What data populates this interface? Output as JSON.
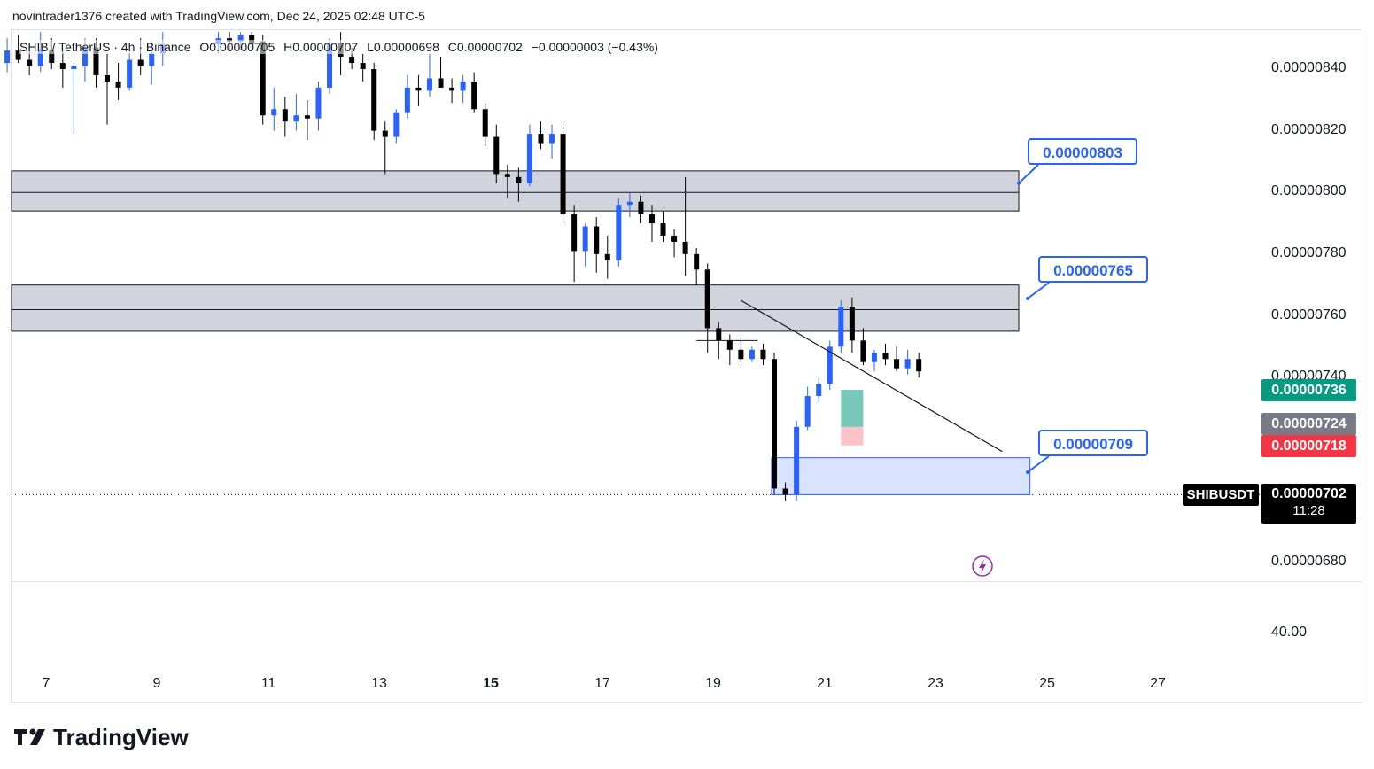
{
  "header": {
    "attribution": "novintrader1376 created with TradingView.com, Dec 24, 2025 02:48 UTC-5"
  },
  "legend": {
    "symbol": "SHIB / TetherUS · 4h · Binance",
    "open": "O0.00000705",
    "high": "H0.00000707",
    "low": "L0.00000698",
    "close": "C0.00000702",
    "change": "−0.00000003 (−0.43%)"
  },
  "price_axis": {
    "ticks": [
      "0.00000840",
      "0.00000820",
      "0.00000800",
      "0.00000780",
      "0.00000760",
      "0.00000740",
      "0.00000680"
    ],
    "indicator_tick": "40.00",
    "label_green": "0.00000736",
    "label_gray": "0.00000724",
    "label_red": "0.00000718",
    "last_price": "0.00000702",
    "countdown": "11:28",
    "symbol_tag": "SHIBUSDT",
    "colors": {
      "green": "#089981",
      "gray": "#787b86",
      "red": "#f23645",
      "black": "#000000"
    }
  },
  "time_axis": {
    "ticks": [
      "7",
      "9",
      "11",
      "13",
      "15",
      "17",
      "19",
      "21",
      "23",
      "25",
      "27"
    ],
    "bold": [
      "15"
    ]
  },
  "callouts": [
    "0.00000803",
    "0.00000765",
    "0.00000709"
  ],
  "footer": {
    "brand": "TradingView"
  },
  "chart_data": {
    "type": "candlestick",
    "symbol": "SHIBUSDT",
    "interval": "4h",
    "exchange": "Binance",
    "ylim": [
      6.7e-06,
      8.5e-06
    ],
    "colors": {
      "up": "#2962ff",
      "down": "#000000",
      "zone": "#d1d4dc",
      "demand_zone": "#cfdcff",
      "accent": "#2962ff"
    },
    "zones": [
      {
        "low": 7.94e-06,
        "high": 8.07e-06,
        "mid": 8e-06
      },
      {
        "low": 7.55e-06,
        "high": 7.7e-06,
        "mid": 7.62e-06
      },
      {
        "low": 7.02e-06,
        "high": 7.14e-06
      }
    ],
    "trendline": [
      {
        "day": 19.5,
        "price": 7.65e-06
      },
      {
        "day": 24.2,
        "price": 7.16e-06
      }
    ],
    "horizontal_segment": {
      "from_day": 18.7,
      "to_day": 19.8,
      "price": 7.52e-06
    },
    "position_tool": {
      "entry": 7.24e-06,
      "target": 7.36e-06,
      "stop": 7.18e-06,
      "from_day": 21.3,
      "to_day": 21.7
    },
    "callout_levels": [
      8.03e-06,
      7.65e-06,
      7.09e-06
    ],
    "candles_ohlc": [
      [
        6.1,
        8.4e-06,
        8.45e-06,
        8.37e-06,
        8.42e-06
      ],
      [
        6.3,
        8.42e-06,
        8.5e-06,
        8.39e-06,
        8.46e-06
      ],
      [
        6.5,
        8.46e-06,
        8.51e-06,
        8.42e-06,
        8.43e-06
      ],
      [
        6.7,
        8.43e-06,
        8.47e-06,
        8.38e-06,
        8.41e-06
      ],
      [
        6.9,
        8.41e-06,
        8.52e-06,
        8.39e-06,
        8.46e-06
      ],
      [
        7.1,
        8.46e-06,
        8.5e-06,
        8.4e-06,
        8.42e-06
      ],
      [
        7.3,
        8.42e-06,
        8.46e-06,
        8.34e-06,
        8.4e-06
      ],
      [
        7.5,
        8.4e-06,
        8.42e-06,
        8.19e-06,
        8.41e-06
      ],
      [
        7.7,
        8.41e-06,
        8.5e-06,
        8.36e-06,
        8.47e-06
      ],
      [
        7.9,
        8.47e-06,
        8.5e-06,
        8.34e-06,
        8.38e-06
      ],
      [
        8.1,
        8.38e-06,
        8.45e-06,
        8.22e-06,
        8.36e-06
      ],
      [
        8.3,
        8.36e-06,
        8.42e-06,
        8.3e-06,
        8.34e-06
      ],
      [
        8.5,
        8.34e-06,
        8.46e-06,
        8.33e-06,
        8.43e-06
      ],
      [
        8.7,
        8.43e-06,
        8.5e-06,
        8.38e-06,
        8.41e-06
      ],
      [
        8.9,
        8.41e-06,
        8.49e-06,
        8.35e-06,
        8.45e-06
      ],
      [
        9.1,
        8.45e-06,
        8.52e-06,
        8.41e-06,
        8.48e-06
      ],
      [
        10.1,
        8.48e-06,
        8.52e-06,
        8.45e-06,
        8.5e-06
      ],
      [
        10.3,
        8.5e-06,
        8.52e-06,
        8.46e-06,
        8.49e-06
      ],
      [
        10.5,
        8.49e-06,
        8.52e-06,
        8.46e-06,
        8.51e-06
      ],
      [
        10.7,
        8.51e-06,
        8.52e-06,
        8.46e-06,
        8.48e-06
      ],
      [
        10.9,
        8.49e-06,
        8.51e-06,
        8.22e-06,
        8.25e-06
      ],
      [
        11.1,
        8.25e-06,
        8.34e-06,
        8.2e-06,
        8.27e-06
      ],
      [
        11.3,
        8.27e-06,
        8.31e-06,
        8.18e-06,
        8.23e-06
      ],
      [
        11.5,
        8.23e-06,
        8.32e-06,
        8.2e-06,
        8.25e-06
      ],
      [
        11.7,
        8.25e-06,
        8.3e-06,
        8.17e-06,
        8.24e-06
      ],
      [
        11.9,
        8.24e-06,
        8.36e-06,
        8.2e-06,
        8.34e-06
      ],
      [
        12.1,
        8.34e-06,
        8.5e-06,
        8.32e-06,
        8.48e-06
      ],
      [
        12.3,
        8.48e-06,
        8.52e-06,
        8.38e-06,
        8.44e-06
      ],
      [
        12.5,
        8.44e-06,
        8.47e-06,
        8.4e-06,
        8.42e-06
      ],
      [
        12.7,
        8.42e-06,
        8.45e-06,
        8.36e-06,
        8.4e-06
      ],
      [
        12.9,
        8.4e-06,
        8.42e-06,
        8.17e-06,
        8.2e-06
      ],
      [
        13.1,
        8.2e-06,
        8.23e-06,
        8.06e-06,
        8.18e-06
      ],
      [
        13.3,
        8.18e-06,
        8.27e-06,
        8.16e-06,
        8.26e-06
      ],
      [
        13.5,
        8.26e-06,
        8.38e-06,
        8.24e-06,
        8.34e-06
      ],
      [
        13.7,
        8.34e-06,
        8.38e-06,
        8.28e-06,
        8.33e-06
      ],
      [
        13.9,
        8.33e-06,
        8.45e-06,
        8.31e-06,
        8.37e-06
      ],
      [
        14.1,
        8.37e-06,
        8.44e-06,
        8.34e-06,
        8.34e-06
      ],
      [
        14.3,
        8.34e-06,
        8.37e-06,
        8.29e-06,
        8.33e-06
      ],
      [
        14.5,
        8.33e-06,
        8.38e-06,
        8.29e-06,
        8.36e-06
      ],
      [
        14.7,
        8.36e-06,
        8.39e-06,
        8.26e-06,
        8.27e-06
      ],
      [
        14.9,
        8.27e-06,
        8.29e-06,
        8.15e-06,
        8.18e-06
      ],
      [
        15.1,
        8.18e-06,
        8.22e-06,
        8.03e-06,
        8.06e-06
      ],
      [
        15.3,
        8.06e-06,
        8.09e-06,
        7.98e-06,
        8.05e-06
      ],
      [
        15.5,
        8.05e-06,
        8.08e-06,
        7.97e-06,
        8.03e-06
      ],
      [
        15.7,
        8.03e-06,
        8.22e-06,
        8.02e-06,
        8.19e-06
      ],
      [
        15.9,
        8.19e-06,
        8.23e-06,
        8.14e-06,
        8.16e-06
      ],
      [
        16.1,
        8.16e-06,
        8.22e-06,
        8.11e-06,
        8.19e-06
      ],
      [
        16.3,
        8.19e-06,
        8.23e-06,
        7.9e-06,
        7.93e-06
      ],
      [
        16.5,
        7.93e-06,
        7.96e-06,
        7.71e-06,
        7.81e-06
      ],
      [
        16.7,
        7.81e-06,
        7.9e-06,
        7.76e-06,
        7.89e-06
      ],
      [
        16.9,
        7.89e-06,
        7.92e-06,
        7.74e-06,
        7.8e-06
      ],
      [
        17.1,
        7.8e-06,
        7.86e-06,
        7.72e-06,
        7.78e-06
      ],
      [
        17.3,
        7.78e-06,
        7.98e-06,
        7.76e-06,
        7.96e-06
      ],
      [
        17.5,
        7.96e-06,
        8e-06,
        7.92e-06,
        7.97e-06
      ],
      [
        17.7,
        7.97e-06,
        7.99e-06,
        7.9e-06,
        7.93e-06
      ],
      [
        17.9,
        7.93e-06,
        7.96e-06,
        7.84e-06,
        7.9e-06
      ],
      [
        18.1,
        7.9e-06,
        7.94e-06,
        7.84e-06,
        7.86e-06
      ],
      [
        18.3,
        7.86e-06,
        7.88e-06,
        7.79e-06,
        7.84e-06
      ],
      [
        18.5,
        7.84e-06,
        8.05e-06,
        7.73e-06,
        7.8e-06
      ],
      [
        18.7,
        7.8e-06,
        7.82e-06,
        7.7e-06,
        7.75e-06
      ],
      [
        18.9,
        7.75e-06,
        7.77e-06,
        7.48e-06,
        7.56e-06
      ],
      [
        19.1,
        7.56e-06,
        7.58e-06,
        7.46e-06,
        7.52e-06
      ],
      [
        19.3,
        7.52e-06,
        7.54e-06,
        7.44e-06,
        7.49e-06
      ],
      [
        19.5,
        7.49e-06,
        7.53e-06,
        7.45e-06,
        7.46e-06
      ],
      [
        19.7,
        7.46e-06,
        7.5e-06,
        7.45e-06,
        7.49e-06
      ],
      [
        19.9,
        7.49e-06,
        7.51e-06,
        7.44e-06,
        7.46e-06
      ],
      [
        20.1,
        7.46e-06,
        7.48e-06,
        7.02e-06,
        7.04e-06
      ],
      [
        20.3,
        7.04e-06,
        7.06e-06,
        7e-06,
        7.02e-06
      ],
      [
        20.5,
        7.02e-06,
        7.26e-06,
        7e-06,
        7.24e-06
      ],
      [
        20.7,
        7.24e-06,
        7.37e-06,
        7.23e-06,
        7.34e-06
      ],
      [
        20.9,
        7.34e-06,
        7.4e-06,
        7.32e-06,
        7.38e-06
      ],
      [
        21.1,
        7.38e-06,
        7.52e-06,
        7.36e-06,
        7.5e-06
      ],
      [
        21.3,
        7.5e-06,
        7.65e-06,
        7.48e-06,
        7.63e-06
      ],
      [
        21.5,
        7.63e-06,
        7.66e-06,
        7.48e-06,
        7.52e-06
      ],
      [
        21.7,
        7.52e-06,
        7.56e-06,
        7.44e-06,
        7.45e-06
      ],
      [
        21.9,
        7.45e-06,
        7.49e-06,
        7.42e-06,
        7.48e-06
      ],
      [
        22.1,
        7.48e-06,
        7.51e-06,
        7.44e-06,
        7.46e-06
      ],
      [
        22.3,
        7.46e-06,
        7.5e-06,
        7.42e-06,
        7.43e-06
      ],
      [
        22.5,
        7.43e-06,
        7.49e-06,
        7.41e-06,
        7.46e-06
      ],
      [
        22.7,
        7.46e-06,
        7.48e-06,
        7.4e-06,
        7.42e-06
      ]
    ]
  }
}
